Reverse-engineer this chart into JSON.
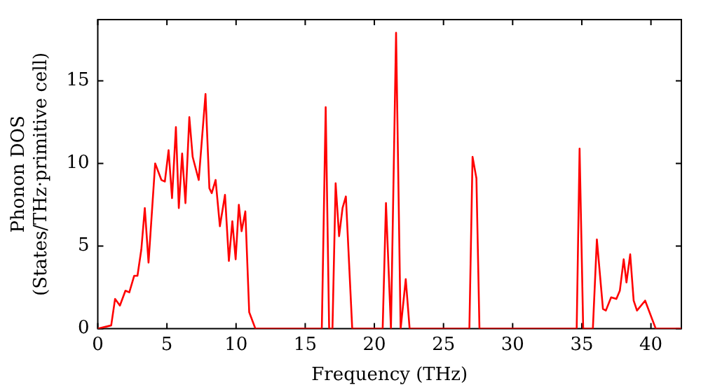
{
  "chart_data": {
    "type": "line",
    "xlabel": "Frequency (THz)",
    "ylabel": "Phonon DOS\n(States/THz·primitive cell)",
    "xlim": [
      0,
      42.2
    ],
    "ylim": [
      0,
      18.7
    ],
    "xticks": [
      0,
      5,
      10,
      15,
      20,
      25,
      30,
      35,
      40
    ],
    "yticks": [
      0,
      5,
      10,
      15
    ],
    "legend": false,
    "marker": "none",
    "line_style": "solid",
    "series": [
      {
        "color": "#ff0000",
        "x": [
          0,
          0.97,
          1.25,
          1.6,
          2.0,
          2.28,
          2.63,
          2.87,
          3.15,
          3.4,
          3.67,
          4.15,
          4.6,
          4.85,
          5.12,
          5.37,
          5.65,
          5.86,
          6.1,
          6.34,
          6.62,
          6.86,
          7.3,
          7.79,
          8.07,
          8.24,
          8.52,
          8.83,
          9.2,
          9.48,
          9.73,
          9.97,
          10.2,
          10.4,
          10.67,
          10.95,
          11.4,
          16.2,
          16.48,
          16.73,
          16.97,
          17.2,
          17.45,
          17.7,
          17.94,
          18.4,
          20.6,
          20.84,
          21.2,
          21.57,
          21.9,
          22.27,
          22.55,
          26.87,
          27.1,
          27.38,
          27.6,
          34.63,
          34.84,
          35.1,
          35.8,
          36.09,
          36.53,
          36.74,
          37.12,
          37.5,
          37.75,
          38.03,
          38.23,
          38.5,
          38.75,
          38.99,
          39.58,
          40.35,
          42.2
        ],
        "values": [
          0,
          0.2,
          1.8,
          1.4,
          2.3,
          2.2,
          3.2,
          3.2,
          4.8,
          7.3,
          4.0,
          10.0,
          9.0,
          8.9,
          10.8,
          7.9,
          12.2,
          7.3,
          10.6,
          7.6,
          12.8,
          10.4,
          9.0,
          14.2,
          8.5,
          8.2,
          9.0,
          6.2,
          8.1,
          4.1,
          6.5,
          4.2,
          7.5,
          5.9,
          7.1,
          1.0,
          0,
          0,
          13.4,
          0,
          0,
          8.8,
          5.6,
          7.3,
          8.0,
          0,
          0,
          7.6,
          0,
          17.9,
          0,
          3.0,
          0,
          0,
          10.4,
          9.1,
          0,
          0,
          10.9,
          0,
          0,
          5.4,
          1.2,
          1.1,
          1.9,
          1.8,
          2.3,
          4.2,
          2.8,
          4.5,
          1.7,
          1.1,
          1.7,
          0,
          0
        ]
      }
    ]
  }
}
